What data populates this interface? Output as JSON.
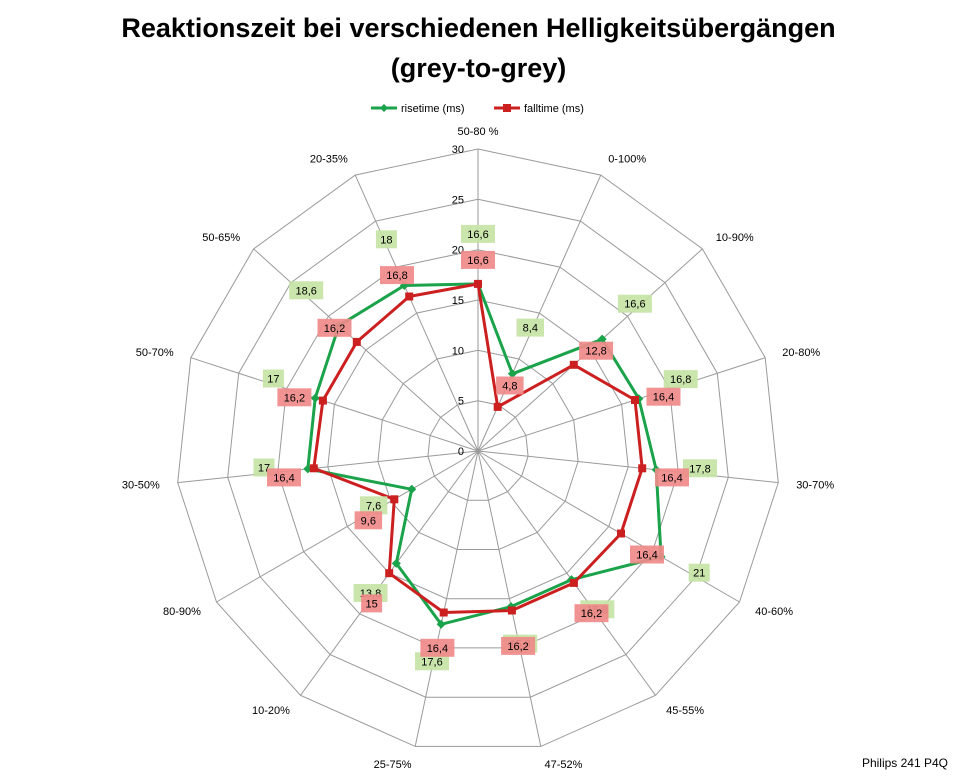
{
  "chart_data": {
    "type": "radar",
    "title_line1": "Reaktionszeit bei verschiedenen Helligkeitsübergängen",
    "title_line2": "(grey-to-grey)",
    "categories": [
      "50-80 %",
      "0-100%",
      "10-90%",
      "20-80%",
      "30-70%",
      "40-60%",
      "45-55%",
      "47-52%",
      "25-75%",
      "10-20%",
      "80-90%",
      "30-50%",
      "50-70%",
      "50-65%",
      "20-35%"
    ],
    "series": [
      {
        "name": "risetime (ms)",
        "color": "#1aa34a",
        "label_bg": "#c5e4a5",
        "values": [
          16.6,
          8.4,
          16.6,
          16.8,
          17.8,
          21,
          15.8,
          15.8,
          17.6,
          13.8,
          7.6,
          17.0,
          17.0,
          18.6,
          18.0
        ],
        "labels": [
          "16,6",
          "8,4",
          "16,6",
          "16,8",
          "17,8",
          "21",
          "15,8",
          "15,8",
          "17,6",
          "13,8",
          "7,6",
          "17",
          "17",
          "18,6",
          "18"
        ]
      },
      {
        "name": "falltime (ms)",
        "color": "#cc1f1f",
        "label_bg": "#f08a8a",
        "values": [
          16.6,
          4.8,
          12.8,
          16.4,
          16.4,
          16.4,
          16.2,
          16.2,
          16.4,
          15,
          9.6,
          16.4,
          16.2,
          16.2,
          16.8
        ],
        "labels": [
          "16,6",
          "4,8",
          "12,8",
          "16,4",
          "16,4",
          "16,4",
          "16,2",
          "16,2",
          "16,4",
          "15",
          "9,6",
          "16,4",
          "16,2",
          "16,2",
          "16,8"
        ]
      }
    ],
    "rlim": [
      0,
      30
    ],
    "ticks": [
      "0",
      "5",
      "10",
      "15",
      "20",
      "25",
      "30"
    ],
    "grid": true,
    "legend_position": "top"
  },
  "footer": "Philips 241  P4Q"
}
